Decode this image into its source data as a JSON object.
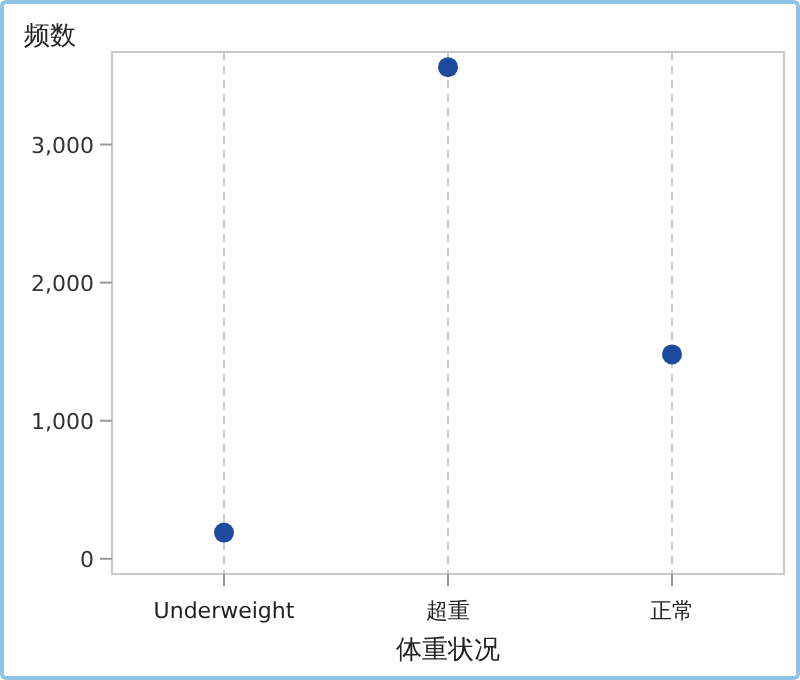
{
  "chart_data": {
    "type": "scatter",
    "xlabel": "体重状况",
    "ylabel": "频数",
    "categories": [
      "Underweight",
      "超重",
      "正常"
    ],
    "series": [
      {
        "color": "#1c4a9c",
        "values": [
          190,
          3560,
          1480
        ]
      }
    ],
    "ylim": [
      -110,
      3670
    ],
    "yticks": [
      {
        "value": 0,
        "label": "0"
      },
      {
        "value": 1000,
        "label": "1,000"
      },
      {
        "value": 2000,
        "label": "2,000"
      },
      {
        "value": 3000,
        "label": "3,000"
      }
    ],
    "grid": "x",
    "marker": "circle"
  }
}
